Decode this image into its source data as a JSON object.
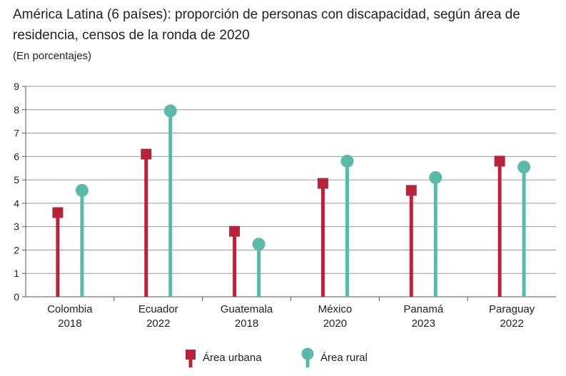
{
  "chart_data": {
    "type": "lollipop",
    "title": "América Latina (6 países): proporción de personas con discapacidad, según área de residencia, censos de la ronda de 2020",
    "subtitle": "(En porcentajes)",
    "xlabel": "",
    "ylabel": "",
    "ylim": [
      0,
      9
    ],
    "yticks": [
      "0",
      "1",
      "2",
      "3",
      "4",
      "5",
      "6",
      "7",
      "8",
      "9"
    ],
    "grid": true,
    "categories": [
      {
        "country": "Colombia",
        "year": "2018"
      },
      {
        "country": "Ecuador",
        "year": "2022"
      },
      {
        "country": "Guatemala",
        "year": "2018"
      },
      {
        "country": "México",
        "year": "2020"
      },
      {
        "country": "Panamá",
        "year": "2023"
      },
      {
        "country": "Paraguay",
        "year": "2022"
      }
    ],
    "series": [
      {
        "name": "Área urbana",
        "marker": "square",
        "color": "#b5243c",
        "values": [
          3.6,
          6.1,
          2.8,
          4.85,
          4.55,
          5.8
        ]
      },
      {
        "name": "Área rural",
        "marker": "circle",
        "color": "#5cb8a8",
        "values": [
          4.55,
          7.95,
          2.25,
          5.8,
          5.1,
          5.55
        ]
      }
    ],
    "legend_position": "bottom"
  }
}
